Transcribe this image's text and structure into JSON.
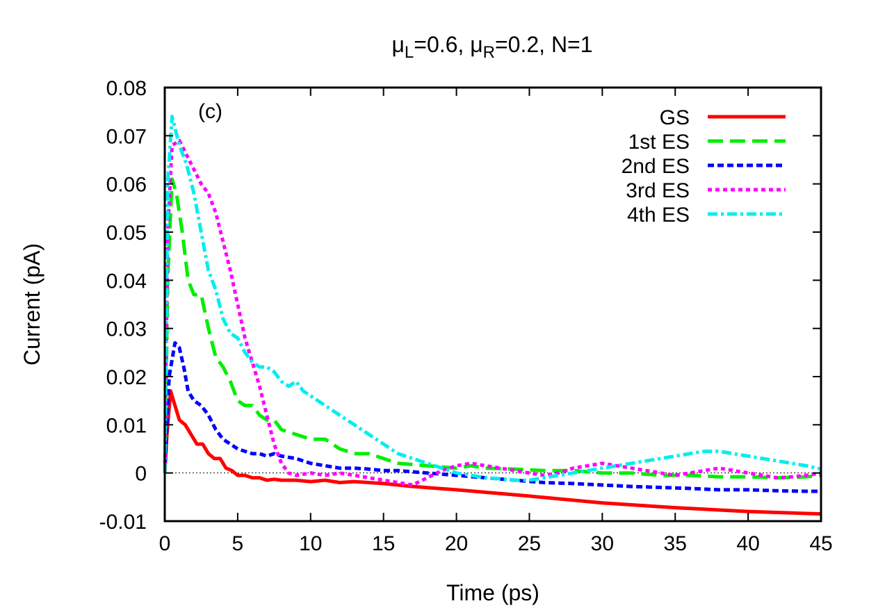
{
  "chart_data": {
    "type": "line",
    "title": {
      "mu": "μ",
      "sub_l": "L",
      "part1": "=0.6, ",
      "sub_r": "R",
      "part2": "=0.2, N=1"
    },
    "annotation": "(c)",
    "xlabel": "Time (ps)",
    "ylabel": "Current (pA)",
    "xlim": [
      0,
      45
    ],
    "ylim": [
      -0.01,
      0.08
    ],
    "xticks": [
      0,
      5,
      10,
      15,
      20,
      25,
      30,
      35,
      40,
      45
    ],
    "xtick_labels": [
      "0",
      "5",
      "10",
      "15",
      "20",
      "25",
      "30",
      "35",
      "40",
      "45"
    ],
    "yticks": [
      -0.01,
      0,
      0.01,
      0.02,
      0.03,
      0.04,
      0.05,
      0.06,
      0.07,
      0.08
    ],
    "ytick_labels": [
      "-0.01",
      "0",
      "0.01",
      "0.02",
      "0.03",
      "0.04",
      "0.05",
      "0.06",
      "0.07",
      "0.08"
    ],
    "zero_line": true,
    "legend_position": "top-right",
    "series": [
      {
        "name": "GS",
        "color": "#ff0000",
        "style": "solid",
        "x": [
          0,
          0.15,
          0.4,
          0.7,
          1,
          1.4,
          1.8,
          2.2,
          2.6,
          3,
          3.4,
          3.8,
          4.2,
          4.6,
          5,
          5.5,
          6,
          6.5,
          7,
          7.5,
          8,
          9,
          10,
          11,
          12,
          13,
          14,
          15,
          17,
          20,
          25,
          30,
          35,
          40,
          45
        ],
        "values": [
          0,
          0.008,
          0.017,
          0.014,
          0.011,
          0.01,
          0.008,
          0.006,
          0.006,
          0.004,
          0.003,
          0.003,
          0.001,
          0.0005,
          -0.0005,
          -0.0005,
          -0.001,
          -0.001,
          -0.0015,
          -0.0013,
          -0.0015,
          -0.0015,
          -0.0018,
          -0.0015,
          -0.002,
          -0.0018,
          -0.002,
          -0.0022,
          -0.0028,
          -0.0035,
          -0.0048,
          -0.0062,
          -0.0072,
          -0.008,
          -0.0085
        ]
      },
      {
        "name": "1st ES",
        "color": "#00ee00",
        "style": "dashed",
        "x": [
          0,
          0.2,
          0.5,
          0.8,
          1.2,
          1.6,
          2,
          2.5,
          3,
          3.5,
          4,
          4.5,
          5,
          5.5,
          6,
          6.5,
          7,
          7.5,
          8,
          9,
          10,
          11,
          12,
          13,
          14,
          15,
          16,
          18,
          20,
          21,
          22,
          24,
          26,
          28,
          30,
          32,
          34,
          36,
          38,
          40,
          42,
          44,
          45
        ],
        "values": [
          0,
          0.04,
          0.061,
          0.058,
          0.05,
          0.04,
          0.037,
          0.037,
          0.03,
          0.024,
          0.022,
          0.019,
          0.015,
          0.014,
          0.014,
          0.012,
          0.011,
          0.011,
          0.009,
          0.008,
          0.007,
          0.007,
          0.005,
          0.004,
          0.004,
          0.003,
          0.002,
          0.0015,
          0.001,
          0.0015,
          0.001,
          0.0008,
          0.0005,
          0.0005,
          0.0,
          0.0,
          -0.0005,
          -0.0005,
          -0.0008,
          -0.0008,
          -0.001,
          -0.0008,
          -0.0005
        ]
      },
      {
        "name": "2nd ES",
        "color": "#0000ff",
        "style": "dotdash-short",
        "x": [
          0,
          0.3,
          0.7,
          1,
          1.3,
          1.6,
          2,
          2.5,
          3,
          3.5,
          4,
          4.5,
          5,
          5.5,
          6,
          6.5,
          7,
          7.5,
          8,
          9,
          10,
          11,
          12,
          13,
          14,
          15,
          16,
          18,
          20,
          22,
          24,
          26,
          28,
          30,
          32,
          34,
          36,
          38,
          40,
          42,
          44,
          45
        ],
        "values": [
          0,
          0.02,
          0.027,
          0.026,
          0.022,
          0.017,
          0.015,
          0.014,
          0.012,
          0.009,
          0.007,
          0.006,
          0.005,
          0.0045,
          0.004,
          0.004,
          0.0035,
          0.004,
          0.0035,
          0.003,
          0.002,
          0.0015,
          0.001,
          0.001,
          0.0008,
          0.0005,
          0.0005,
          0.0,
          -0.0005,
          -0.001,
          -0.0015,
          -0.002,
          -0.0022,
          -0.0025,
          -0.0028,
          -0.003,
          -0.0032,
          -0.0035,
          -0.0035,
          -0.0037,
          -0.0038,
          -0.0038
        ]
      },
      {
        "name": "3rd ES",
        "color": "#ff00ff",
        "style": "dotted",
        "x": [
          0,
          0.2,
          0.5,
          1,
          1.5,
          2,
          2.5,
          3,
          3.5,
          4,
          4.5,
          5,
          5.5,
          6,
          6.5,
          7,
          7.5,
          8,
          8.5,
          9,
          10,
          11,
          12,
          13,
          14,
          15,
          16,
          17,
          18,
          19,
          20,
          21,
          22,
          23,
          24,
          25,
          26,
          27,
          28,
          29,
          30,
          31,
          32,
          33,
          34,
          35,
          36,
          37,
          38,
          39,
          40,
          41,
          42,
          43,
          44,
          45
        ],
        "values": [
          0,
          0.05,
          0.068,
          0.069,
          0.066,
          0.063,
          0.06,
          0.058,
          0.054,
          0.048,
          0.042,
          0.035,
          0.028,
          0.023,
          0.018,
          0.012,
          0.006,
          0.002,
          0.0,
          -0.0005,
          0.0,
          -0.0005,
          0.0,
          -0.0005,
          -0.001,
          -0.0015,
          -0.002,
          -0.0025,
          -0.001,
          0.0005,
          0.0015,
          0.002,
          0.0015,
          0.001,
          0.0005,
          0.0,
          -0.0005,
          0.0,
          0.001,
          0.0015,
          0.002,
          0.0015,
          0.001,
          0.0005,
          0.0,
          -0.0005,
          0.0,
          0.0005,
          0.001,
          0.0005,
          0.0,
          -0.0005,
          -0.001,
          -0.0008,
          -0.0005,
          0.0
        ]
      },
      {
        "name": "4th ES",
        "color": "#00eeee",
        "style": "dashdot",
        "x": [
          0,
          0.2,
          0.5,
          1,
          1.5,
          2,
          2.5,
          3,
          3.5,
          4,
          4.5,
          5,
          5.5,
          6,
          6.5,
          7,
          7.5,
          8,
          8.5,
          9,
          9.5,
          10,
          11,
          12,
          13,
          14,
          15,
          16,
          17,
          18,
          19,
          20,
          21,
          22,
          23,
          24,
          25,
          26,
          27,
          28,
          29,
          30,
          31,
          32,
          33,
          34,
          35,
          36,
          37,
          38,
          39,
          40,
          41,
          42,
          43,
          44,
          45
        ],
        "values": [
          0,
          0.06,
          0.074,
          0.068,
          0.064,
          0.058,
          0.05,
          0.042,
          0.038,
          0.032,
          0.029,
          0.028,
          0.025,
          0.023,
          0.022,
          0.022,
          0.021,
          0.019,
          0.018,
          0.019,
          0.017,
          0.016,
          0.014,
          0.012,
          0.01,
          0.008,
          0.006,
          0.004,
          0.003,
          0.002,
          0.001,
          0.0,
          -0.0005,
          -0.001,
          -0.0012,
          -0.0015,
          -0.0015,
          -0.001,
          -0.0005,
          0.0,
          0.0005,
          0.001,
          0.0015,
          0.002,
          0.0025,
          0.003,
          0.0035,
          0.004,
          0.0045,
          0.0045,
          0.004,
          0.0035,
          0.003,
          0.0025,
          0.002,
          0.0015,
          0.0008
        ]
      }
    ]
  }
}
